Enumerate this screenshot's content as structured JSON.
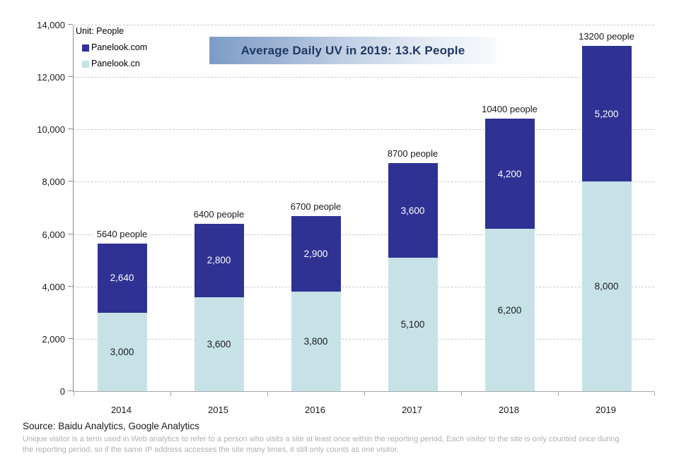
{
  "unit_label": "Unit: People",
  "title": "Average Daily UV in 2019: 13.K People",
  "legend": {
    "items": [
      {
        "label": "Panelook.com",
        "color": "#2F3193"
      },
      {
        "label": "Panelook.cn",
        "color": "#C6E2E7"
      }
    ]
  },
  "chart_data": {
    "type": "bar",
    "stacked": true,
    "title": "Average Daily UV in 2019: 13.K People",
    "unit": "People",
    "categories": [
      "2014",
      "2015",
      "2016",
      "2017",
      "2018",
      "2019"
    ],
    "series": [
      {
        "name": "Panelook.cn",
        "color": "#C6E2E7",
        "label_color": "#1a1a1a",
        "values": [
          3000,
          3600,
          3800,
          5100,
          6200,
          8000
        ],
        "value_labels": [
          "3,000",
          "3,600",
          "3,800",
          "5,100",
          "6,200",
          "8,000"
        ]
      },
      {
        "name": "Panelook.com",
        "color": "#2F3193",
        "label_color": "#ffffff",
        "values": [
          2640,
          2800,
          2900,
          3600,
          4200,
          5200
        ],
        "value_labels": [
          "2,640",
          "2,800",
          "2,900",
          "3,600",
          "4,200",
          "5,200"
        ]
      }
    ],
    "totals": [
      5640,
      6400,
      6700,
      8700,
      10400,
      13200
    ],
    "total_labels": [
      "5640 people",
      "6400 people",
      "6700 people",
      "8700 people",
      "10400 people",
      "13200 people"
    ],
    "ylim": [
      0,
      14000
    ],
    "ytick_step": 2000,
    "ytick_labels": [
      "0",
      "2,000",
      "4,000",
      "6,000",
      "8,000",
      "10,000",
      "12,000",
      "14,000"
    ],
    "grid": "horizontal-dashed",
    "legend_position": "top-left"
  },
  "footer": {
    "source": "Source: Baidu Analytics, Google Analytics",
    "footnote_lines": [
      "Unique visitor is a term used in Web analytics to refer to a person who visits a site at least once within the reporting period, Each visitor to the site is only counted once during",
      "the reporting period, so if the same IP address accesses the site many times, it still only counts as one visitor,"
    ]
  },
  "colors": {
    "grid": "#C9C9C9",
    "axis": "#8C8C8C",
    "title_text": "#1F3864",
    "title_bg_stops": [
      "#7D9CC6",
      "#9FB4D4",
      "#C3D2E6",
      "#E4EBF4",
      "#F7FAFC"
    ],
    "footnote": "#B0B0B0"
  }
}
